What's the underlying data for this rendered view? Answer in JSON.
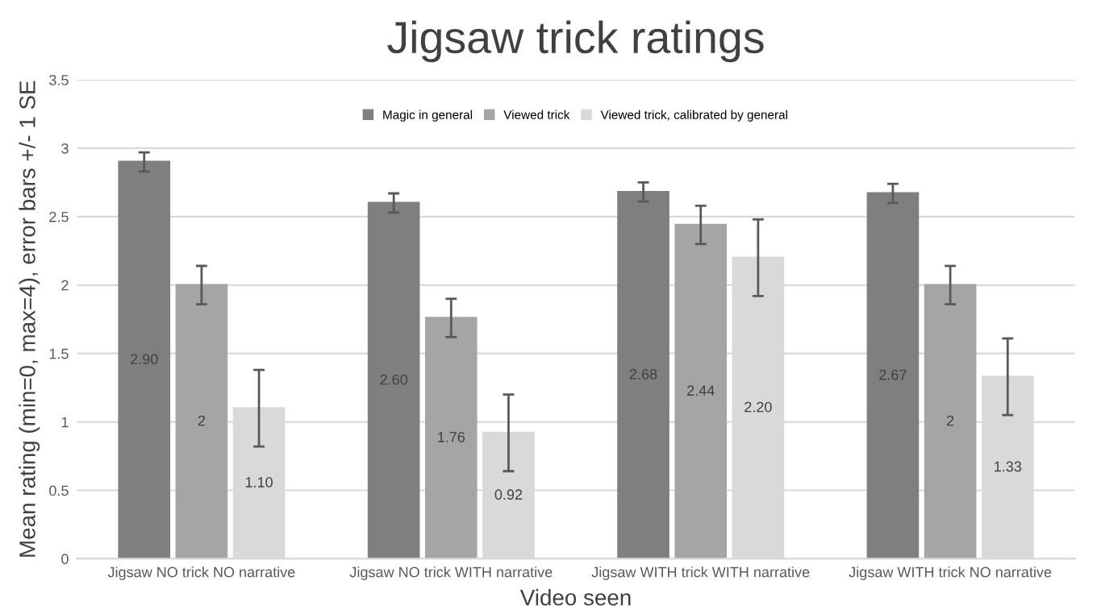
{
  "chart_data": {
    "type": "bar",
    "title": "Jigsaw trick ratings",
    "xlabel": "Video seen",
    "ylabel": "Mean rating (min=0, max=4), error bars +/- 1 SE",
    "categories": [
      "Jigsaw NO trick NO narrative",
      "Jigsaw NO trick WITH narrative",
      "Jigsaw WITH trick WITH narrative",
      "Jigsaw WITH trick NO narrative"
    ],
    "series": [
      {
        "name": "Magic in general",
        "color": "#7f7f7f",
        "values": [
          2.9,
          2.6,
          2.68,
          2.67
        ],
        "errors": [
          0.07,
          0.07,
          0.07,
          0.07
        ],
        "value_labels": [
          "2.90",
          "2.60",
          "2.68",
          "2.67"
        ]
      },
      {
        "name": "Viewed trick",
        "color": "#a5a5a5",
        "values": [
          2,
          1.76,
          2.44,
          2
        ],
        "errors": [
          0.14,
          0.14,
          0.14,
          0.14
        ],
        "value_labels": [
          "2",
          "1.76",
          "2.44",
          "2"
        ]
      },
      {
        "name": "Viewed trick, calibrated by general",
        "color": "#d9d9d9",
        "values": [
          1.1,
          0.92,
          2.2,
          1.33
        ],
        "errors": [
          0.28,
          0.28,
          0.28,
          0.28
        ],
        "value_labels": [
          "1.10",
          "0.92",
          "2.20",
          "1.33"
        ]
      }
    ],
    "ylim": [
      0,
      3.5
    ],
    "yticks": [
      0,
      0.5,
      1,
      1.5,
      2,
      2.5,
      3,
      3.5
    ],
    "grid": "y",
    "legend": "top"
  }
}
